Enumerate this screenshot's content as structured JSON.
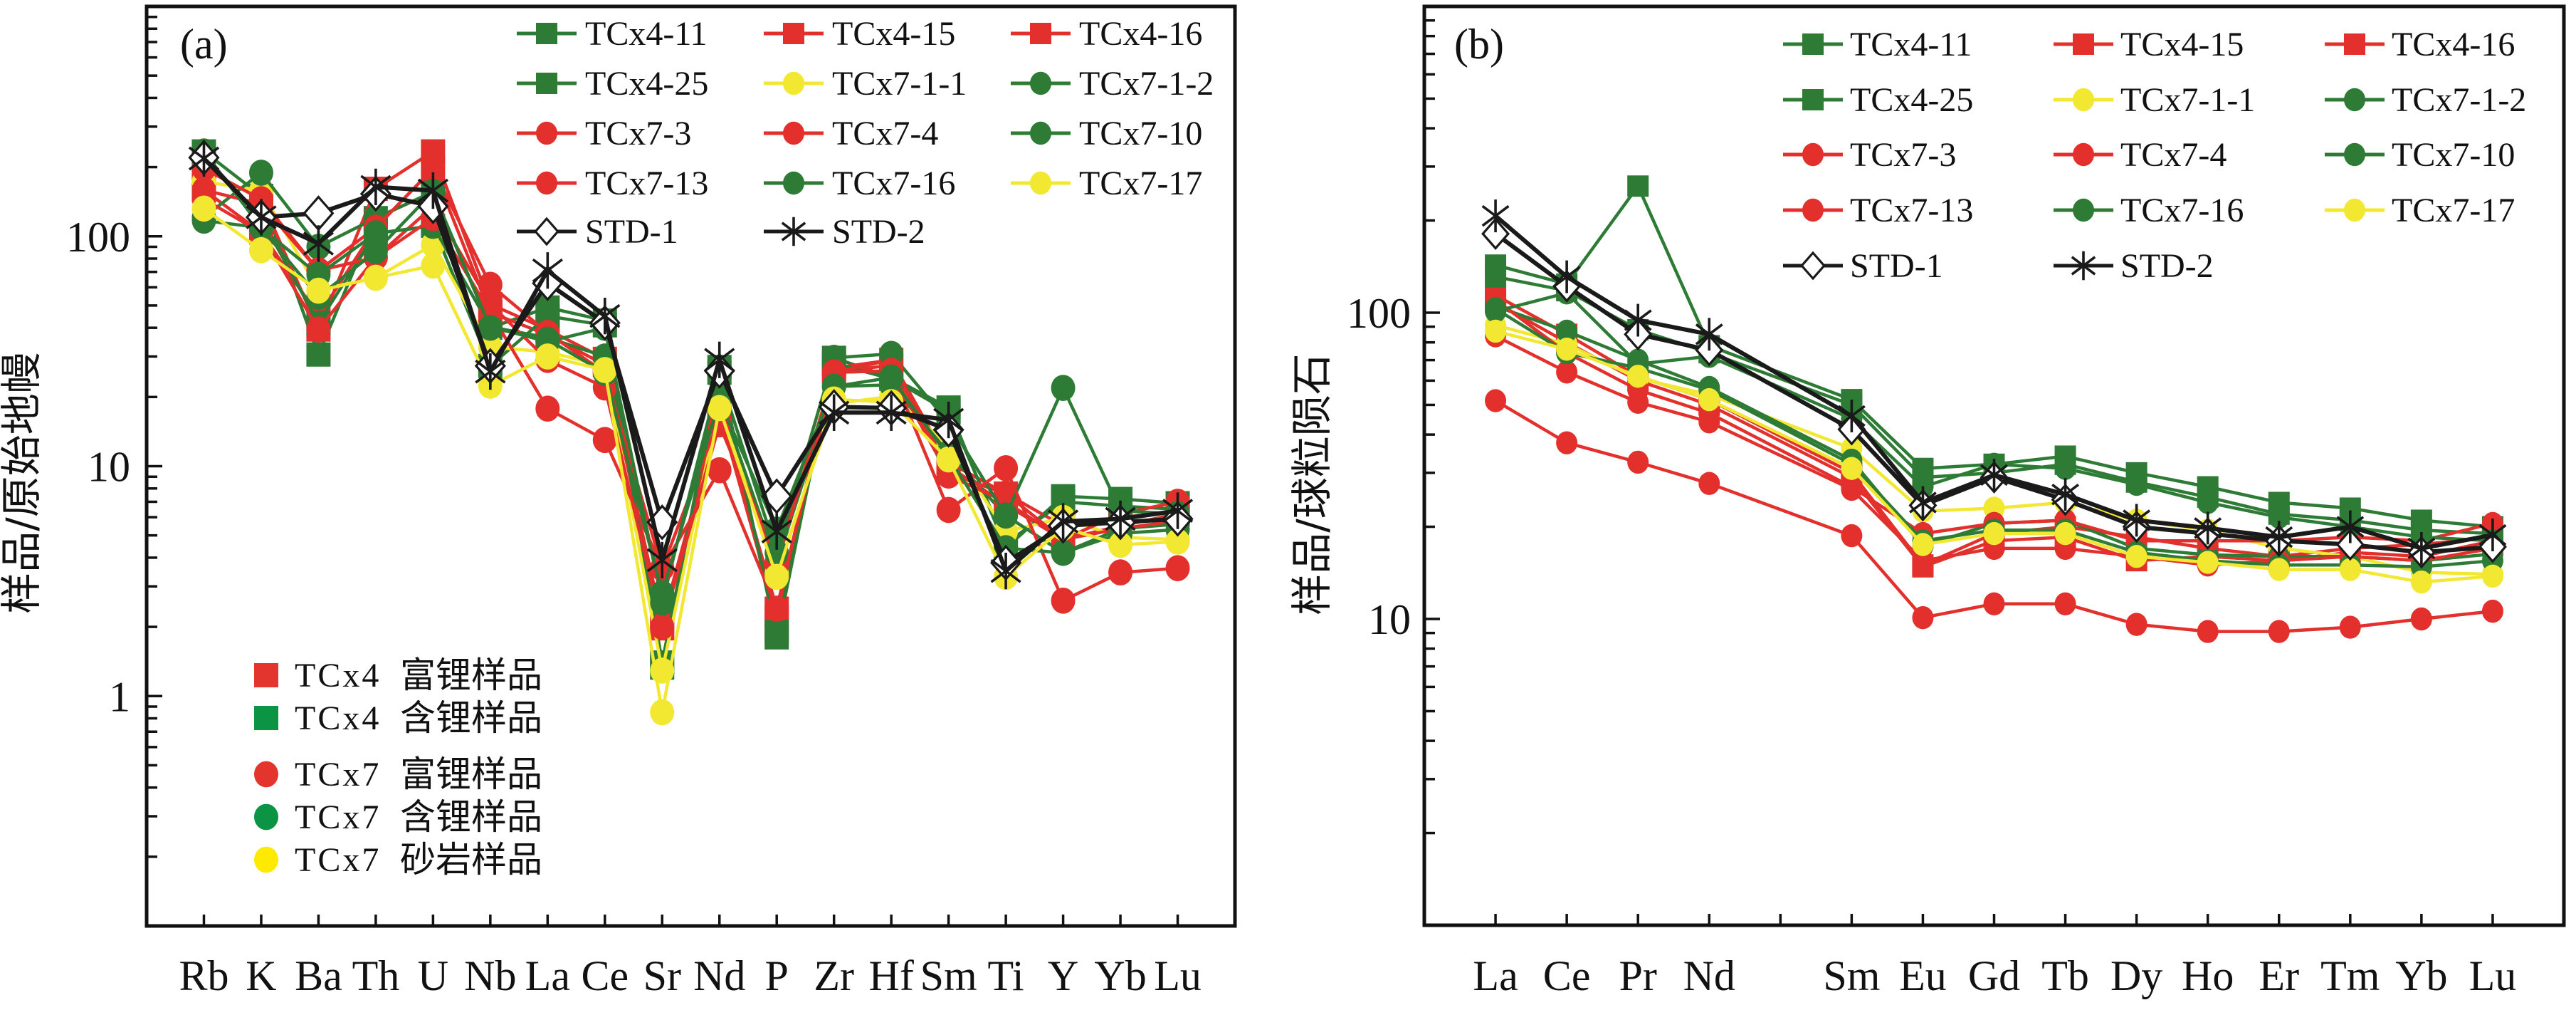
{
  "palette": {
    "green": "#2e7b35",
    "red": "#e3302d",
    "yellow": "#f2e831",
    "black": "#1a1a1a",
    "legend2_red": "#e3352d",
    "legend2_green": "#0b9444",
    "legend2_yellow": "#fdea00"
  },
  "chart_data": [
    {
      "type": "line",
      "title": "(a)",
      "xlabel": "",
      "ylabel": "样品/原始地幔",
      "yscale": "log",
      "ylim": [
        0.1,
        1000
      ],
      "yticks": [
        1,
        10,
        100
      ],
      "ytick_labels": [
        "1",
        "10",
        "100"
      ],
      "grid": false,
      "legend_position": "top-right",
      "categories": [
        "Rb",
        "K",
        "Ba",
        "Th",
        "U",
        "Nb",
        "La",
        "Ce",
        "Sr",
        "Nd",
        "P",
        "Zr",
        "Hf",
        "Sm",
        "Ti",
        "Y",
        "Yb",
        "Lu"
      ],
      "series": [
        {
          "name": "TCx4-11",
          "color": "#2e7b35",
          "marker": "square",
          "values": [
            234,
            150,
            30.6,
            120,
            156,
            40,
            49,
            43,
            1.33,
            27,
            1.8,
            29.6,
            24.3,
            18,
            4.4,
            7.4,
            7.2,
            6.9
          ]
        },
        {
          "name": "TCx4-15",
          "color": "#e3302d",
          "marker": "square",
          "values": [
            197,
            145,
            39.3,
            161,
            234,
            50.7,
            39.3,
            29.3,
            1.97,
            17.9,
            2.4,
            26.7,
            29,
            10.4,
            7.6,
            5.5,
            6.0,
            6.3
          ]
        },
        {
          "name": "TCx4-16",
          "color": "#e3302d",
          "marker": "square",
          "values": [
            159,
            104,
            45,
            109,
            197,
            46.6,
            37.3,
            27.6,
            2.1,
            17.3,
            2.2,
            25.6,
            27.5,
            10,
            6.8,
            4.8,
            5.5,
            6.2
          ]
        },
        {
          "name": "TCx4-25",
          "color": "#2e7b35",
          "marker": "square",
          "values": [
            225,
            120,
            42,
            103,
            111,
            27.3,
            45,
            41,
            1.4,
            25.5,
            1.9,
            28,
            24,
            17.3,
            4.6,
            7.0,
            6.7,
            6.5
          ]
        },
        {
          "name": "TCx7-1-1",
          "color": "#f2e831",
          "marker": "circle",
          "values": [
            173,
            158,
            58.5,
            66,
            92,
            33,
            31.4,
            27.3,
            1.29,
            18.6,
            3.4,
            18.7,
            20.1,
            12.4,
            5.2,
            5.96,
            4.9,
            4.8
          ]
        },
        {
          "name": "TCx7-1-2",
          "color": "#2e7b35",
          "marker": "circle",
          "values": [
            121,
            189,
            90,
            120,
            156,
            40.4,
            36.2,
            30,
            2.8,
            19.7,
            3.8,
            22.2,
            22.6,
            11.4,
            6.1,
            4.2,
            5.35,
            5.6
          ]
        },
        {
          "name": "TCx7-3",
          "color": "#e3302d",
          "marker": "circle",
          "values": [
            197,
            145,
            71,
            109,
            197,
            61.5,
            38,
            25.5,
            3.6,
            16.2,
            3.8,
            25.6,
            29,
            9.3,
            7.6,
            4.8,
            6.2,
            7.0
          ]
        },
        {
          "name": "TCx7-4",
          "color": "#e3302d",
          "marker": "circle",
          "values": [
            159,
            138,
            71,
            81,
            135,
            50.7,
            29,
            22,
            2.0,
            15.2,
            3.8,
            25.6,
            26,
            9.1,
            7.0,
            4.8,
            5.35,
            5.8
          ]
        },
        {
          "name": "TCx7-10",
          "color": "#2e7b35",
          "marker": "circle",
          "values": [
            117,
            109,
            68,
            103,
            111,
            40.4,
            34.8,
            40,
            2.55,
            24.8,
            4.2,
            29.6,
            30.8,
            15.5,
            6.1,
            21.9,
            6.4,
            6.2
          ]
        },
        {
          "name": "TCx7-13",
          "color": "#e3302d",
          "marker": "circle",
          "values": [
            145,
            104,
            39.3,
            81,
            120,
            46.6,
            17.8,
            13,
            3.6,
            9.6,
            2.4,
            25.6,
            26,
            6.45,
            9.8,
            2.6,
            3.45,
            3.6
          ]
        },
        {
          "name": "TCx7-16",
          "color": "#2e7b35",
          "marker": "circle",
          "values": [
            234,
            109,
            54.5,
            86,
            156,
            40,
            35.5,
            25.5,
            2.8,
            19.3,
            5.3,
            22.2,
            24.3,
            11,
            4.4,
            4.2,
            5.1,
            5.3
          ]
        },
        {
          "name": "TCx7-17",
          "color": "#f2e831",
          "marker": "circle",
          "values": [
            132,
            87,
            58,
            66,
            74.6,
            22.4,
            30,
            26.2,
            0.85,
            17.9,
            3.3,
            19.5,
            19,
            10.7,
            3.3,
            5.4,
            4.55,
            4.7
          ]
        },
        {
          "name": "STD-1",
          "color": "#1a1a1a",
          "marker": "diamond",
          "values": [
            220,
            121,
            126,
            153,
            135,
            27.3,
            62.5,
            42,
            5.7,
            26,
            7.4,
            18.1,
            17.9,
            14.4,
            3.8,
            5.5,
            5.7,
            5.9
          ]
        },
        {
          "name": "STD-2",
          "color": "#1a1a1a",
          "marker": "asterisk",
          "values": [
            218,
            121,
            93,
            164,
            158,
            25.8,
            71,
            45,
            3.9,
            29,
            5.2,
            17.1,
            17.1,
            15.9,
            3.5,
            5.75,
            5.9,
            6.4
          ]
        }
      ],
      "legend2": {
        "position": "bottom-left",
        "entries": [
          {
            "code": "TCx4",
            "desc": "富锂样品",
            "marker": "square",
            "color": "#e3352d"
          },
          {
            "code": "TCx4",
            "desc": "含锂样品",
            "marker": "square",
            "color": "#0b9444"
          },
          {
            "code": "TCx7",
            "desc": "富锂样品",
            "marker": "circle",
            "color": "#e3352d"
          },
          {
            "code": "TCx7",
            "desc": "含锂样品",
            "marker": "circle",
            "color": "#0b9444"
          },
          {
            "code": "TCx7",
            "desc": "砂岩样品",
            "marker": "circle",
            "color": "#fdea00"
          }
        ]
      }
    },
    {
      "type": "line",
      "title": "(b)",
      "xlabel": "",
      "ylabel": "样品/球粒陨石",
      "yscale": "log",
      "ylim": [
        1,
        1000
      ],
      "yticks": [
        10,
        100
      ],
      "ytick_labels": [
        "10",
        "100"
      ],
      "grid": false,
      "legend_position": "top-right",
      "categories": [
        "La",
        "Ce",
        "Pr",
        "Nd",
        "",
        "Sm",
        "Eu",
        "Gd",
        "Tb",
        "Dy",
        "Ho",
        "Er",
        "Tm",
        "Yb",
        "Lu"
      ],
      "series": [
        {
          "name": "TCx4-11",
          "color": "#2e7b35",
          "marker": "square",
          "values": [
            143,
            124,
            259,
            78,
            null,
            52,
            31,
            32,
            34,
            30,
            27,
            24,
            23,
            21,
            20
          ]
        },
        {
          "name": "TCx4-15",
          "color": "#e3302d",
          "marker": "square",
          "values": [
            114,
            85,
            62,
            52,
            null,
            30,
            15,
            19,
            20,
            18.5,
            17,
            16,
            17,
            17.5,
            18.5
          ]
        },
        {
          "name": "TCx4-16",
          "color": "#e3302d",
          "marker": "square",
          "values": [
            108,
            80,
            60,
            50,
            null,
            29,
            14.8,
            18,
            18.5,
            15.5,
            16,
            15.5,
            16.5,
            16,
            18
          ]
        },
        {
          "name": "TCx4-25",
          "color": "#2e7b35",
          "marker": "square",
          "values": [
            131,
            118,
            88,
            74,
            null,
            50,
            29,
            30,
            32,
            28,
            25,
            22,
            21,
            19.5,
            19
          ]
        },
        {
          "name": "TCx7-1-1",
          "color": "#f2e831",
          "marker": "circle",
          "values": [
            91,
            79,
            61,
            54,
            null,
            36,
            22.5,
            23,
            24,
            21,
            19.5,
            17,
            16,
            14.2,
            14
          ]
        },
        {
          "name": "TCx7-1-2",
          "color": "#2e7b35",
          "marker": "circle",
          "values": [
            105,
            87,
            70,
            57,
            null,
            33,
            17.3,
            20.5,
            21,
            17,
            16.2,
            16,
            16,
            15.5,
            16.3
          ]
        },
        {
          "name": "TCx7-3",
          "color": "#e3302d",
          "marker": "circle",
          "values": [
            110,
            74,
            56,
            47,
            null,
            27,
            19,
            20.5,
            21,
            18,
            18,
            18,
            18.5,
            18,
            20.5
          ]
        },
        {
          "name": "TCx7-4",
          "color": "#e3302d",
          "marker": "circle",
          "values": [
            84,
            64,
            51,
            44,
            null,
            26.5,
            15.5,
            17,
            17,
            16,
            15,
            15.5,
            16,
            15.5,
            17
          ]
        },
        {
          "name": "TCx7-10",
          "color": "#2e7b35",
          "marker": "circle",
          "values": [
            101,
            116,
            68,
            72,
            null,
            45,
            27,
            32,
            31,
            27.5,
            24,
            21.5,
            20,
            18.5,
            18
          ]
        },
        {
          "name": "TCx7-13",
          "color": "#e3302d",
          "marker": "circle",
          "values": [
            51.6,
            37.6,
            32.5,
            27.7,
            null,
            18.7,
            10.1,
            11.2,
            11.2,
            9.6,
            9.1,
            9.1,
            9.4,
            10,
            10.6
          ]
        },
        {
          "name": "TCx7-16",
          "color": "#2e7b35",
          "marker": "circle",
          "values": [
            103,
            74,
            66,
            56,
            null,
            32,
            18,
            19.5,
            19.5,
            16.5,
            15.5,
            15,
            15,
            14.8,
            15.5
          ]
        },
        {
          "name": "TCx7-17",
          "color": "#f2e831",
          "marker": "circle",
          "values": [
            87,
            76,
            62,
            52,
            null,
            31,
            17.5,
            19,
            19,
            16,
            15.3,
            14.5,
            14.5,
            13.2,
            13.8
          ]
        },
        {
          "name": "STD-1",
          "color": "#1a1a1a",
          "marker": "diamond",
          "values": [
            181,
            122,
            85,
            75.5,
            null,
            41.6,
            23.5,
            29,
            24.5,
            20,
            19,
            18,
            17.5,
            16.5,
            17.2
          ]
        },
        {
          "name": "STD-2",
          "color": "#1a1a1a",
          "marker": "asterisk",
          "values": [
            207,
            131,
            94.5,
            85,
            null,
            46,
            24,
            29.5,
            25.5,
            21,
            19.8,
            18.5,
            20,
            17,
            18.8
          ]
        }
      ]
    }
  ]
}
